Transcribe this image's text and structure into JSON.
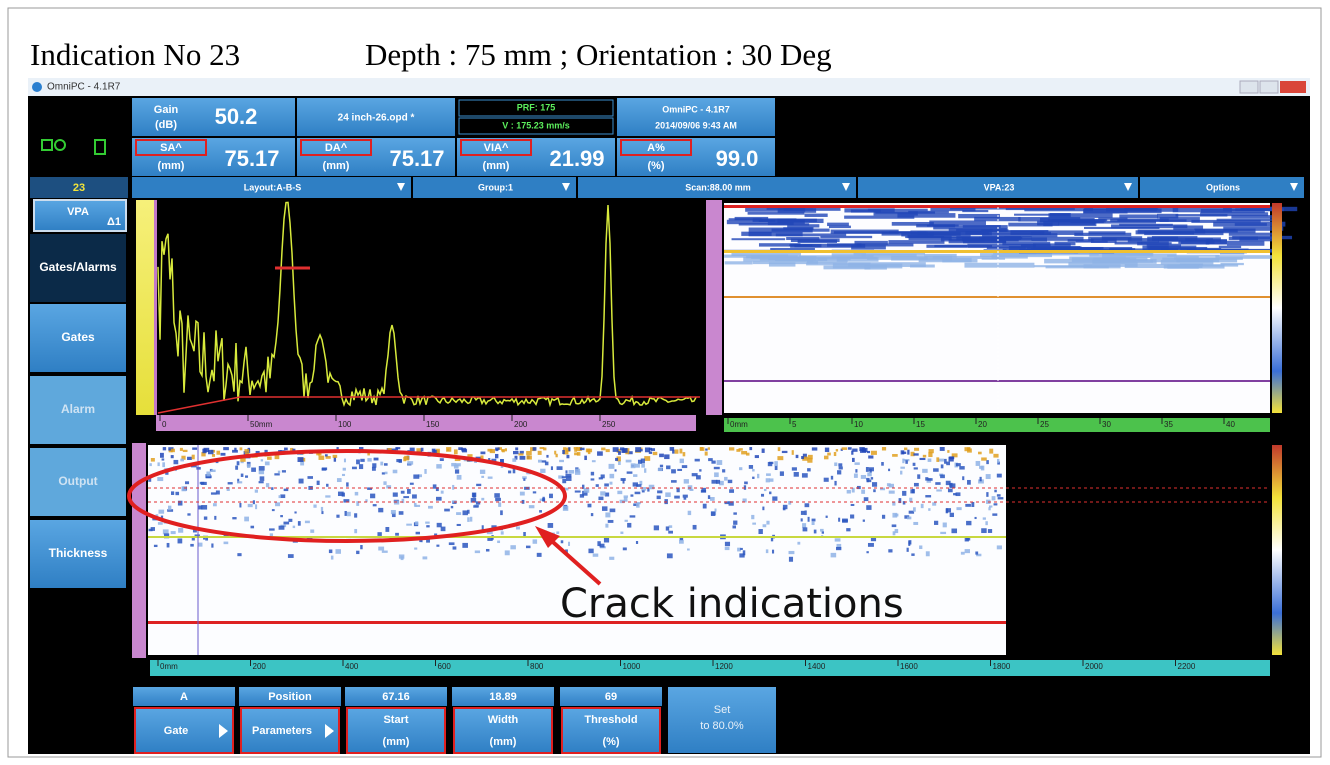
{
  "header": {
    "title": "Indication No 23",
    "subtitle": "Depth : 75 mm ; Orientation : 30 Deg"
  },
  "window": {
    "title": "OmniPC - 4.1R7"
  },
  "status": {
    "gain_label": "Gain",
    "gain_unit": "(dB)",
    "gain": "50.2",
    "file": "24 inch-26.opd *",
    "prf": "PRF: 175",
    "velocity": "V : 175.23 mm/s",
    "app": "OmniPC - 4.1R7",
    "datetime": "2014/09/06 9:43 AM",
    "readings": [
      {
        "label": "SA^",
        "unit": "(mm)",
        "value": "75.17"
      },
      {
        "label": "DA^",
        "unit": "(mm)",
        "value": "75.17"
      },
      {
        "label": "VIA^",
        "unit": "(mm)",
        "value": "21.99"
      },
      {
        "label": "A%",
        "unit": "(%)",
        "value": "99.0"
      }
    ]
  },
  "toolbar": {
    "index": "23",
    "items": [
      "Layout:A-B-S",
      "Group:1",
      "Scan:88.00 mm",
      "VPA:23",
      "Options"
    ]
  },
  "menu": {
    "vpa": "VPA",
    "vpa_sub": "Δ1",
    "items": [
      "Gates/Alarms",
      "Gates",
      "Alarm",
      "Output",
      "Thickness"
    ]
  },
  "ascan": {
    "xticks": [
      "0",
      "50mm",
      "100",
      "150",
      "200",
      "250"
    ]
  },
  "bscan": {
    "xticks": [
      "0mm",
      "5",
      "10",
      "15",
      "20",
      "25",
      "30",
      "35",
      "40"
    ]
  },
  "sscan": {
    "xticks": [
      "0mm",
      "200",
      "400",
      "600",
      "800",
      "1000",
      "1200",
      "1400",
      "1600",
      "1800",
      "2000",
      "2200"
    ]
  },
  "params": [
    {
      "top": "A",
      "bottom": "Gate"
    },
    {
      "top": "Position",
      "bottom": "Parameters"
    },
    {
      "top": "67.16",
      "bottom": "Start",
      "unit": "(mm)"
    },
    {
      "top": "18.89",
      "bottom": "Width",
      "unit": "(mm)"
    },
    {
      "top": "69",
      "bottom": "Threshold",
      "unit": "(%)"
    }
  ],
  "set": {
    "lines": [
      "Set",
      "to 80.0%"
    ]
  },
  "annotation": "Crack indications"
}
